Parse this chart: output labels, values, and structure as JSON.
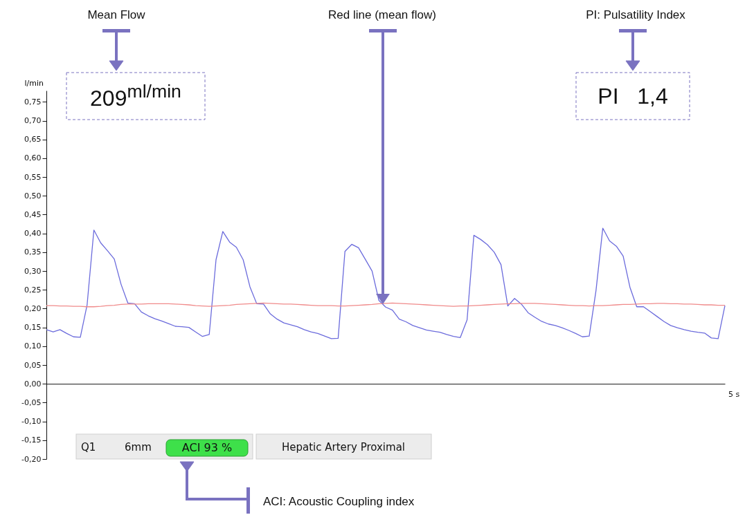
{
  "chart_data": {
    "type": "line",
    "ylabel": "l/min",
    "ylim": [
      -0.2,
      0.78
    ],
    "categories": [
      null,
      null,
      null,
      null,
      null,
      null,
      null,
      null,
      null,
      null,
      null,
      null,
      null,
      null,
      null,
      null,
      null,
      null,
      null,
      null,
      null,
      null,
      null,
      null,
      null,
      null,
      null,
      null,
      null,
      null,
      null,
      null,
      null,
      null,
      null,
      null,
      null,
      null,
      null,
      null,
      null,
      null,
      null,
      null,
      null,
      null,
      null,
      null,
      null,
      null,
      null,
      null,
      null,
      null,
      null,
      null,
      null,
      null,
      null,
      null,
      null,
      null,
      null,
      null,
      null,
      null,
      null,
      null,
      null,
      null,
      null,
      null,
      null,
      null,
      null,
      null,
      null,
      null,
      null,
      null,
      null,
      null,
      null,
      null,
      null,
      null,
      null,
      null,
      null,
      null,
      null,
      null,
      null,
      null,
      null,
      null,
      null,
      null,
      null,
      null,
      null
    ],
    "yticks": [
      {
        "value": -0.2,
        "label": "-0,20"
      },
      {
        "value": -0.15,
        "label": "-0,15"
      },
      {
        "value": -0.1,
        "label": "-0,10"
      },
      {
        "value": -0.05,
        "label": "-0,05"
      },
      {
        "value": 0,
        "label": "0,00"
      },
      {
        "value": 0.05,
        "label": "0,05"
      },
      {
        "value": 0.1,
        "label": "0,10"
      },
      {
        "value": 0.15,
        "label": "0,15"
      },
      {
        "value": 0.2,
        "label": "0,20"
      },
      {
        "value": 0.25,
        "label": "0,25"
      },
      {
        "value": 0.3,
        "label": "0,30"
      },
      {
        "value": 0.35,
        "label": "0,35"
      },
      {
        "value": 0.4,
        "label": "0,40"
      },
      {
        "value": 0.45,
        "label": "0,45"
      },
      {
        "value": 0.5,
        "label": "0,50"
      },
      {
        "value": 0.55,
        "label": "0,55"
      },
      {
        "value": 0.6,
        "label": "0,60"
      },
      {
        "value": 0.65,
        "label": "0,65"
      },
      {
        "value": 0.7,
        "label": "0,70"
      },
      {
        "value": 0.75,
        "label": "0,75"
      }
    ],
    "marker": "none",
    "line_style": "solid",
    "series": [
      {
        "color": "#6b6bdc",
        "values": [
          0.144,
          0.138,
          0.144,
          0.134,
          0.125,
          0.124,
          0.21,
          0.409,
          0.375,
          0.354,
          0.332,
          0.265,
          0.215,
          0.213,
          0.191,
          0.181,
          0.173,
          0.167,
          0.16,
          0.153,
          0.152,
          0.15,
          0.138,
          0.126,
          0.131,
          0.33,
          0.405,
          0.377,
          0.363,
          0.33,
          0.258,
          0.213,
          0.212,
          0.186,
          0.172,
          0.162,
          0.157,
          0.152,
          0.144,
          0.138,
          0.134,
          0.127,
          0.12,
          0.121,
          0.352,
          0.371,
          0.362,
          0.331,
          0.3,
          0.222,
          0.204,
          0.196,
          0.172,
          0.165,
          0.155,
          0.149,
          0.143,
          0.14,
          0.137,
          0.131,
          0.126,
          0.123,
          0.17,
          0.395,
          0.384,
          0.37,
          0.35,
          0.317,
          0.207,
          0.227,
          0.212,
          0.189,
          0.177,
          0.166,
          0.159,
          0.155,
          0.149,
          0.142,
          0.134,
          0.125,
          0.127,
          0.248,
          0.414,
          0.38,
          0.366,
          0.34,
          0.257,
          0.205,
          0.205,
          0.192,
          0.179,
          0.166,
          0.155,
          0.149,
          0.144,
          0.14,
          0.137,
          0.135,
          0.122,
          0.12,
          0.208
        ]
      },
      {
        "color": "#f08a8a",
        "values": [
          0.208,
          0.208,
          0.207,
          0.207,
          0.206,
          0.206,
          0.205,
          0.205,
          0.206,
          0.208,
          0.209,
          0.211,
          0.212,
          0.212,
          0.212,
          0.213,
          0.213,
          0.213,
          0.213,
          0.212,
          0.211,
          0.21,
          0.208,
          0.207,
          0.206,
          0.207,
          0.208,
          0.209,
          0.211,
          0.212,
          0.213,
          0.214,
          0.215,
          0.214,
          0.213,
          0.212,
          0.212,
          0.211,
          0.21,
          0.209,
          0.208,
          0.208,
          0.208,
          0.207,
          0.207,
          0.208,
          0.209,
          0.21,
          0.211,
          0.213,
          0.214,
          0.215,
          0.214,
          0.213,
          0.212,
          0.211,
          0.21,
          0.209,
          0.208,
          0.207,
          0.206,
          0.207,
          0.207,
          0.208,
          0.209,
          0.21,
          0.211,
          0.212,
          0.213,
          0.213,
          0.214,
          0.214,
          0.214,
          0.213,
          0.212,
          0.211,
          0.21,
          0.209,
          0.208,
          0.208,
          0.207,
          0.208,
          0.208,
          0.209,
          0.21,
          0.211,
          0.211,
          0.212,
          0.213,
          0.213,
          0.214,
          0.214,
          0.213,
          0.213,
          0.212,
          0.212,
          0.211,
          0.21,
          0.21,
          0.209,
          0.209
        ]
      }
    ],
    "annotations": [
      "Mean Flow",
      "Red line (mean flow)",
      "PI: Pulsatility Index",
      "209$^{ml/min}$",
      "PI   1,4",
      "Q1",
      "6mm",
      "ACI 93 %",
      "Hepatic Artery Proximal",
      "ACI: Acoustic Coupling index",
      "5 s"
    ]
  }
}
